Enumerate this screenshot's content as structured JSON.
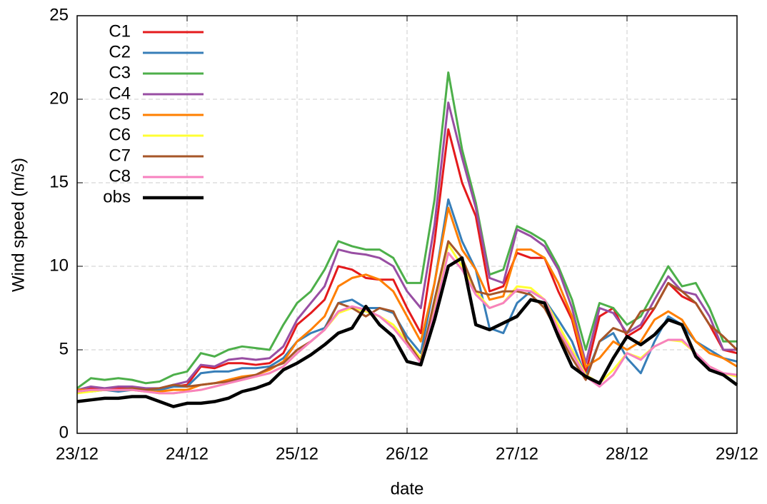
{
  "chart_data": {
    "type": "line",
    "x_label": "date",
    "y_label": "Wind speed (m/s)",
    "x": [
      0,
      0.125,
      0.25,
      0.375,
      0.5,
      0.625,
      0.75,
      0.875,
      1,
      1.125,
      1.25,
      1.375,
      1.5,
      1.625,
      1.75,
      1.875,
      2,
      2.125,
      2.25,
      2.375,
      2.5,
      2.625,
      2.75,
      2.875,
      3,
      3.125,
      3.25,
      3.375,
      3.5,
      3.625,
      3.75,
      3.875,
      4,
      4.125,
      4.25,
      4.375,
      4.5,
      4.625,
      4.75,
      4.875,
      5,
      5.125,
      5.25,
      5.375,
      5.5,
      5.625,
      5.75,
      5.875,
      6
    ],
    "xlim": [
      0,
      6
    ],
    "xticks": [
      {
        "value": 0,
        "label": "23/12"
      },
      {
        "value": 1,
        "label": "24/12"
      },
      {
        "value": 2,
        "label": "25/12"
      },
      {
        "value": 3,
        "label": "26/12"
      },
      {
        "value": 4,
        "label": "27/12"
      },
      {
        "value": 5,
        "label": "28/12"
      },
      {
        "value": 6,
        "label": "29/12"
      }
    ],
    "ylim": [
      0,
      25
    ],
    "yticks": [
      0,
      5,
      10,
      15,
      20,
      25
    ],
    "grid": true,
    "legend": "upper-left",
    "series": [
      {
        "name": "C1",
        "color": "#e41a1c",
        "values": [
          2.6,
          2.7,
          2.6,
          2.7,
          2.7,
          2.6,
          2.6,
          2.8,
          2.9,
          4.0,
          3.9,
          4.2,
          4.2,
          4.1,
          4.2,
          4.8,
          6.5,
          7.2,
          8.0,
          10.0,
          9.8,
          9.3,
          9.2,
          9.2,
          7.5,
          6.0,
          11.5,
          18.2,
          15.0,
          13.0,
          8.5,
          8.8,
          10.8,
          10.5,
          10.5,
          8.5,
          6.8,
          3.6,
          7.0,
          7.5,
          5.8,
          6.3,
          7.5,
          9.0,
          8.2,
          7.8,
          6.5,
          5.0,
          4.8
        ]
      },
      {
        "name": "C2",
        "color": "#377eb8",
        "values": [
          2.6,
          2.5,
          2.6,
          2.5,
          2.6,
          2.6,
          2.6,
          2.8,
          2.8,
          3.6,
          3.7,
          3.7,
          3.9,
          3.9,
          4.0,
          4.5,
          5.5,
          6.0,
          6.3,
          7.8,
          8.0,
          7.5,
          7.5,
          7.2,
          5.8,
          4.8,
          9.0,
          14.0,
          11.5,
          9.8,
          6.3,
          6.0,
          7.8,
          8.5,
          8.0,
          6.8,
          5.5,
          3.4,
          5.5,
          6.0,
          4.5,
          3.6,
          5.5,
          7.0,
          6.5,
          5.5,
          5.0,
          4.5,
          4.3
        ]
      },
      {
        "name": "C3",
        "color": "#4daf4a",
        "values": [
          2.7,
          3.3,
          3.2,
          3.3,
          3.2,
          3.0,
          3.1,
          3.5,
          3.7,
          4.8,
          4.6,
          5.0,
          5.2,
          5.1,
          5.0,
          6.5,
          7.8,
          8.5,
          9.8,
          11.5,
          11.2,
          11.0,
          11.0,
          10.5,
          9.0,
          9.0,
          14.0,
          21.6,
          17.0,
          13.8,
          9.5,
          9.8,
          12.4,
          12.0,
          11.5,
          10.0,
          8.0,
          5.0,
          7.8,
          7.5,
          6.5,
          7.0,
          8.5,
          10.0,
          8.8,
          9.0,
          7.5,
          5.5,
          5.5
        ]
      },
      {
        "name": "C4",
        "color": "#984ea3",
        "values": [
          2.6,
          2.8,
          2.7,
          2.8,
          2.8,
          2.7,
          2.7,
          2.9,
          3.1,
          4.1,
          4.0,
          4.4,
          4.5,
          4.4,
          4.5,
          5.2,
          6.8,
          7.8,
          8.8,
          11.0,
          10.8,
          10.7,
          10.5,
          10.0,
          8.5,
          7.5,
          12.5,
          19.8,
          16.5,
          13.5,
          9.3,
          9.0,
          12.2,
          11.8,
          11.2,
          9.8,
          7.5,
          4.2,
          7.5,
          7.2,
          6.0,
          6.5,
          8.0,
          9.4,
          8.5,
          8.3,
          7.0,
          5.0,
          5.0
        ]
      },
      {
        "name": "C5",
        "color": "#ff7f00",
        "values": [
          2.6,
          2.6,
          2.6,
          2.6,
          2.6,
          2.5,
          2.5,
          2.6,
          2.6,
          2.9,
          3.0,
          3.2,
          3.4,
          3.5,
          3.8,
          4.3,
          5.5,
          6.2,
          7.0,
          8.8,
          9.3,
          9.5,
          9.2,
          8.5,
          7.0,
          5.5,
          9.0,
          13.5,
          11.0,
          9.8,
          8.0,
          8.2,
          11.0,
          11.0,
          10.5,
          9.0,
          7.0,
          4.0,
          4.5,
          5.5,
          5.0,
          5.5,
          6.8,
          7.3,
          6.8,
          5.5,
          4.8,
          4.5,
          4.0
        ]
      },
      {
        "name": "C6",
        "color": "#ffff33",
        "values": [
          2.4,
          2.5,
          2.6,
          2.6,
          2.6,
          2.5,
          2.4,
          2.4,
          2.5,
          2.6,
          2.8,
          3.0,
          3.2,
          3.4,
          3.6,
          4.0,
          4.8,
          5.5,
          6.2,
          7.2,
          7.5,
          7.3,
          7.0,
          6.5,
          5.5,
          4.5,
          7.5,
          11.3,
          10.0,
          8.5,
          7.5,
          7.8,
          8.8,
          8.7,
          8.0,
          6.5,
          5.0,
          3.5,
          3.0,
          3.8,
          4.8,
          4.5,
          5.2,
          5.6,
          5.5,
          4.8,
          4.0,
          3.6,
          3.4
        ]
      },
      {
        "name": "C7",
        "color": "#a65628",
        "values": [
          2.5,
          2.6,
          2.6,
          2.6,
          2.7,
          2.6,
          2.7,
          2.9,
          2.8,
          2.9,
          3.0,
          3.1,
          3.3,
          3.5,
          3.9,
          4.2,
          5.0,
          5.5,
          6.2,
          7.8,
          7.5,
          7.0,
          7.5,
          7.3,
          5.5,
          4.3,
          8.0,
          11.5,
          10.5,
          8.5,
          8.3,
          8.5,
          8.5,
          8.3,
          7.5,
          6.0,
          4.5,
          3.2,
          5.5,
          6.3,
          6.0,
          7.3,
          7.5,
          9.0,
          8.5,
          7.8,
          6.5,
          5.8,
          5.0
        ]
      },
      {
        "name": "C8",
        "color": "#f781bf",
        "values": [
          2.5,
          2.6,
          2.6,
          2.6,
          2.6,
          2.5,
          2.4,
          2.4,
          2.5,
          2.6,
          2.8,
          3.0,
          3.2,
          3.4,
          3.6,
          4.0,
          4.8,
          5.5,
          6.2,
          7.3,
          7.6,
          7.4,
          7.0,
          6.3,
          5.3,
          4.2,
          7.3,
          10.8,
          9.8,
          8.3,
          7.5,
          7.8,
          8.6,
          8.5,
          8.0,
          6.2,
          4.8,
          3.4,
          2.8,
          3.5,
          4.8,
          4.4,
          5.2,
          5.6,
          5.6,
          4.8,
          4.0,
          3.6,
          3.5
        ]
      },
      {
        "name": "obs",
        "color": "#000000",
        "values": [
          1.9,
          2.0,
          2.1,
          2.1,
          2.2,
          2.2,
          1.9,
          1.6,
          1.8,
          1.8,
          1.9,
          2.1,
          2.5,
          2.7,
          3.0,
          3.8,
          4.2,
          4.7,
          5.3,
          6.0,
          6.3,
          7.6,
          6.5,
          5.8,
          4.3,
          4.1,
          6.8,
          10.0,
          10.5,
          6.5,
          6.2,
          6.6,
          7.0,
          8.0,
          7.8,
          5.8,
          4.0,
          3.4,
          3.0,
          4.5,
          5.8,
          5.3,
          5.9,
          6.8,
          6.5,
          4.6,
          3.8,
          3.5,
          2.9
        ]
      }
    ]
  }
}
